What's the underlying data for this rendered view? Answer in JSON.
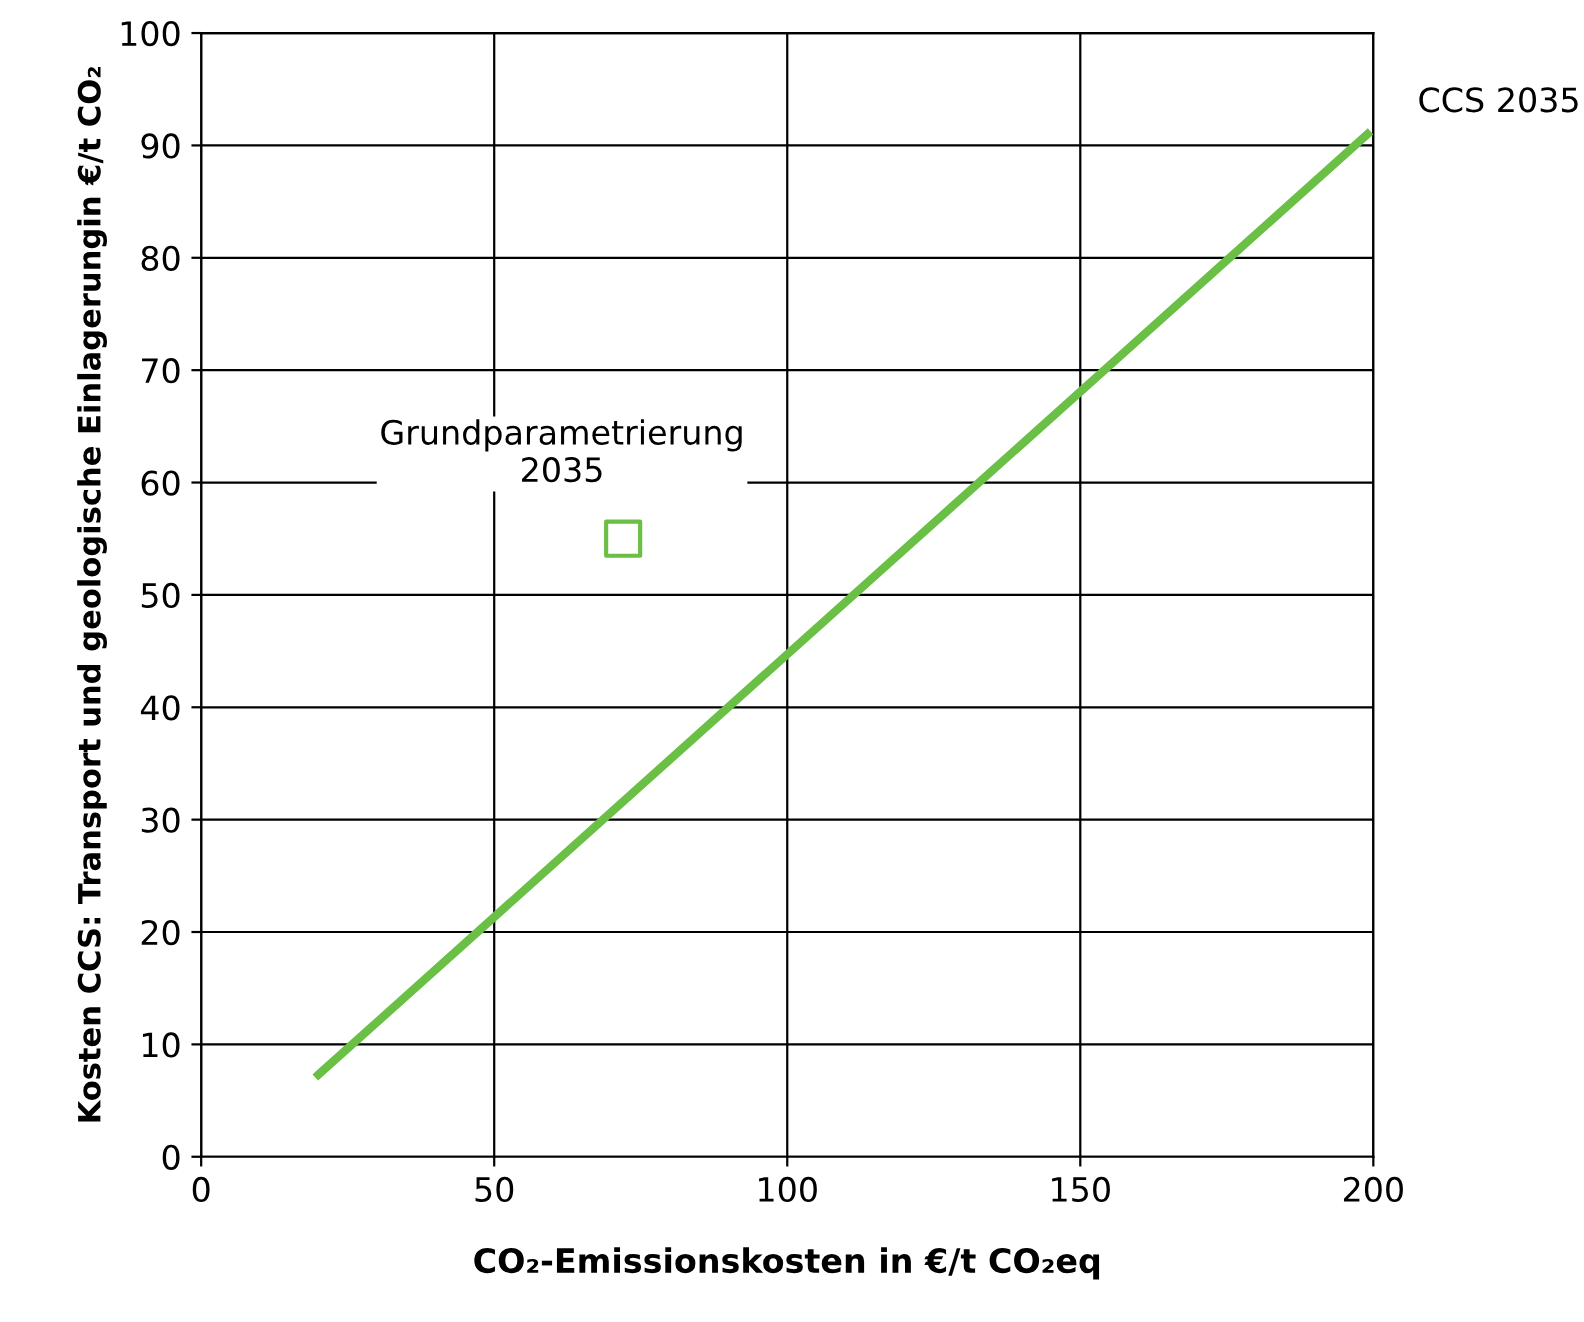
{
  "chart_data": {
    "type": "line",
    "xlabel": "CO₂-Emissionskosten in €/t CO₂eq",
    "ylabel": "Kosten CCS: Transport und geologische Einlagerungin €/t CO₂",
    "series": [
      {
        "color": "#6abf45",
        "x": [
          20,
          199
        ],
        "values": [
          7.3,
          91
        ],
        "marker": "none"
      },
      {
        "type": "scatter",
        "color": "#6abf45",
        "x": [
          72
        ],
        "values": [
          55
        ],
        "marker": "square"
      }
    ],
    "annotations": [
      {
        "text": "CCS 2035",
        "x": 199,
        "y": 91
      },
      {
        "text": "Grundparametrierung\n2035",
        "x": 72,
        "y": 55
      }
    ],
    "xlim": [
      0,
      200
    ],
    "xticks": [
      0,
      50,
      100,
      150,
      200
    ],
    "ylim": [
      0,
      100
    ],
    "yticks": [
      0,
      10,
      20,
      30,
      40,
      50,
      60,
      70,
      80,
      90,
      100
    ],
    "grid": true,
    "legend": false
  }
}
